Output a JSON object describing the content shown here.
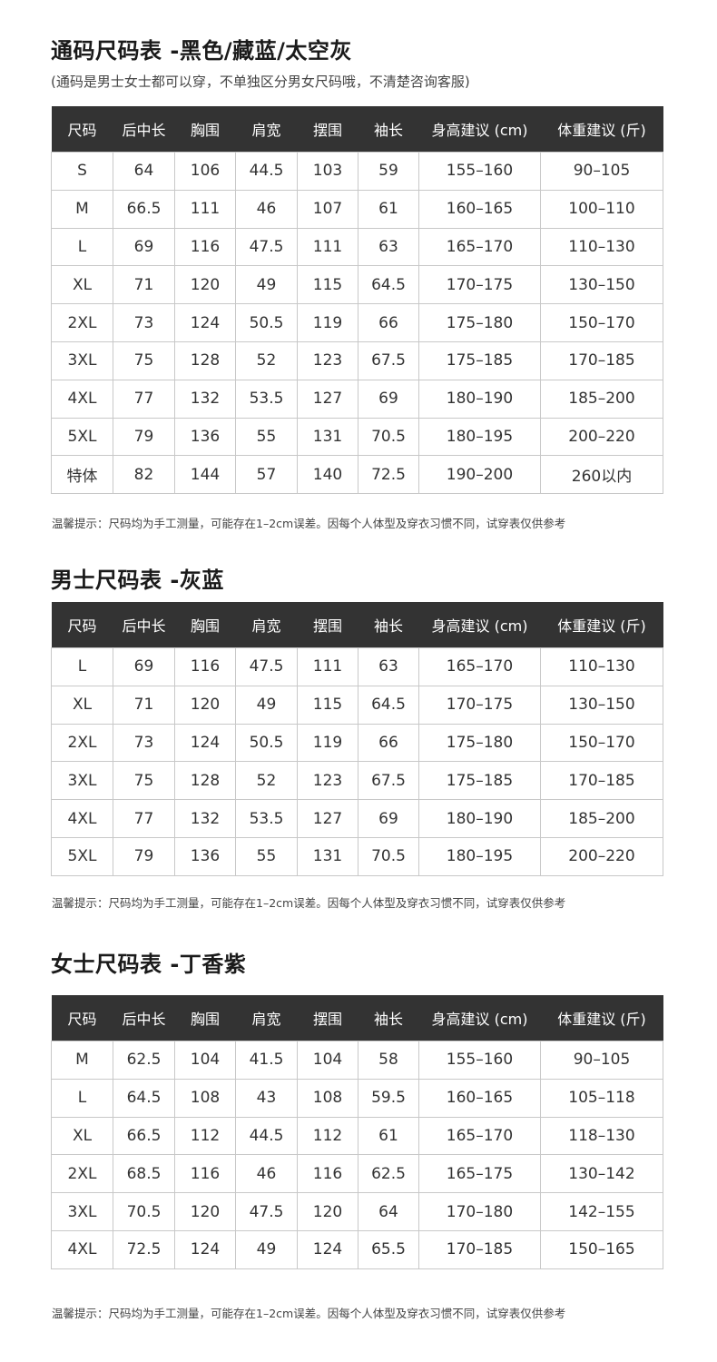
{
  "headers": [
    "尺码",
    "后中长",
    "胸围",
    "肩宽",
    "摆围",
    "袖长",
    "身高建议 (cm)",
    "体重建议 (斤)"
  ],
  "sections": [
    {
      "title": "通码尺码表 -黑色/藏蓝/太空灰",
      "subtitle": "(通码是男士女士都可以穿，不单独区分男女尺码哦，不清楚咨询客服)",
      "rows": [
        [
          "S",
          "64",
          "106",
          "44.5",
          "103",
          "59",
          "155–160",
          "90–105"
        ],
        [
          "M",
          "66.5",
          "111",
          "46",
          "107",
          "61",
          "160–165",
          "100–110"
        ],
        [
          "L",
          "69",
          "116",
          "47.5",
          "111",
          "63",
          "165–170",
          "110–130"
        ],
        [
          "XL",
          "71",
          "120",
          "49",
          "115",
          "64.5",
          "170–175",
          "130–150"
        ],
        [
          "2XL",
          "73",
          "124",
          "50.5",
          "119",
          "66",
          "175–180",
          "150–170"
        ],
        [
          "3XL",
          "75",
          "128",
          "52",
          "123",
          "67.5",
          "175–185",
          "170–185"
        ],
        [
          "4XL",
          "77",
          "132",
          "53.5",
          "127",
          "69",
          "180–190",
          "185–200"
        ],
        [
          "5XL",
          "79",
          "136",
          "55",
          "131",
          "70.5",
          "180–195",
          "200–220"
        ],
        [
          "特体",
          "82",
          "144",
          "57",
          "140",
          "72.5",
          "190–200",
          "260以内"
        ]
      ],
      "note": "温馨提示：尺码均为手工测量，可能存在1–2cm误差。因每个人体型及穿衣习惯不同，试穿表仅供参考"
    },
    {
      "title": "男士尺码表 -灰蓝",
      "rows": [
        [
          "L",
          "69",
          "116",
          "47.5",
          "111",
          "63",
          "165–170",
          "110–130"
        ],
        [
          "XL",
          "71",
          "120",
          "49",
          "115",
          "64.5",
          "170–175",
          "130–150"
        ],
        [
          "2XL",
          "73",
          "124",
          "50.5",
          "119",
          "66",
          "175–180",
          "150–170"
        ],
        [
          "3XL",
          "75",
          "128",
          "52",
          "123",
          "67.5",
          "175–185",
          "170–185"
        ],
        [
          "4XL",
          "77",
          "132",
          "53.5",
          "127",
          "69",
          "180–190",
          "185–200"
        ],
        [
          "5XL",
          "79",
          "136",
          "55",
          "131",
          "70.5",
          "180–195",
          "200–220"
        ]
      ],
      "note": "温馨提示：尺码均为手工测量，可能存在1–2cm误差。因每个人体型及穿衣习惯不同，试穿表仅供参考"
    },
    {
      "title": "女士尺码表 -丁香紫",
      "rows": [
        [
          "M",
          "62.5",
          "104",
          "41.5",
          "104",
          "58",
          "155–160",
          "90–105"
        ],
        [
          "L",
          "64.5",
          "108",
          "43",
          "108",
          "59.5",
          "160–165",
          "105–118"
        ],
        [
          "XL",
          "66.5",
          "112",
          "44.5",
          "112",
          "61",
          "165–170",
          "118–130"
        ],
        [
          "2XL",
          "68.5",
          "116",
          "46",
          "116",
          "62.5",
          "165–175",
          "130–142"
        ],
        [
          "3XL",
          "70.5",
          "120",
          "47.5",
          "120",
          "64",
          "170–180",
          "142–155"
        ],
        [
          "4XL",
          "72.5",
          "124",
          "49",
          "124",
          "65.5",
          "170–185",
          "150–165"
        ]
      ],
      "note": "温馨提示：尺码均为手工测量，可能存在1–2cm误差。因每个人体型及穿衣习惯不同，试穿表仅供参考"
    }
  ]
}
